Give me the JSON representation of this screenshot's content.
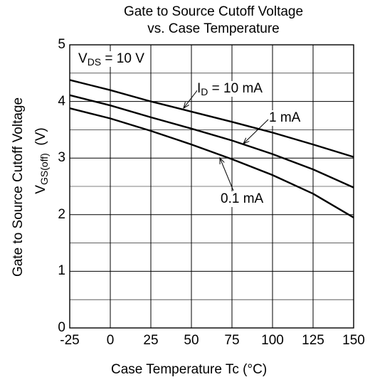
{
  "chart_data": {
    "type": "line",
    "title": "Gate to Source Cutoff Voltage",
    "subtitle": "vs. Case Temperature",
    "xlabel": "Case Temperature    Tc  (°C)",
    "ylabel_main": "Gate to Source Cutoff Voltage",
    "ylabel_symbol": "V",
    "ylabel_symbol_sub": "GS(off)",
    "ylabel_unit": "(V)",
    "xlim": [
      -25,
      150
    ],
    "ylim": [
      0,
      5
    ],
    "xticks": [
      "-25",
      "0",
      "25",
      "50",
      "75",
      "100",
      "125",
      "150"
    ],
    "yticks": [
      "0",
      "1",
      "2",
      "3",
      "4",
      "5"
    ],
    "grid": true,
    "condition": {
      "prefix": "V",
      "sub": "DS",
      "suffix": " = 10 V"
    },
    "series": [
      {
        "name": "I_D = 10 mA",
        "label": {
          "prefix": "I",
          "sub": "D",
          "suffix": " = 10 mA"
        },
        "x": [
          -25,
          0,
          25,
          50,
          75,
          100,
          125,
          150
        ],
        "y": [
          4.38,
          4.2,
          4.0,
          3.82,
          3.64,
          3.45,
          3.24,
          3.02
        ]
      },
      {
        "name": "1 mA",
        "label": {
          "prefix": "",
          "sub": "",
          "suffix": "1 mA"
        },
        "x": [
          -25,
          0,
          25,
          50,
          75,
          100,
          125,
          150
        ],
        "y": [
          4.11,
          3.93,
          3.72,
          3.52,
          3.31,
          3.07,
          2.8,
          2.48
        ]
      },
      {
        "name": "0.1 mA",
        "label": {
          "prefix": "",
          "sub": "",
          "suffix": "0.1 mA"
        },
        "x": [
          -25,
          0,
          25,
          50,
          75,
          100,
          125,
          150
        ],
        "y": [
          3.88,
          3.7,
          3.48,
          3.24,
          2.98,
          2.7,
          2.37,
          1.95
        ]
      }
    ]
  }
}
